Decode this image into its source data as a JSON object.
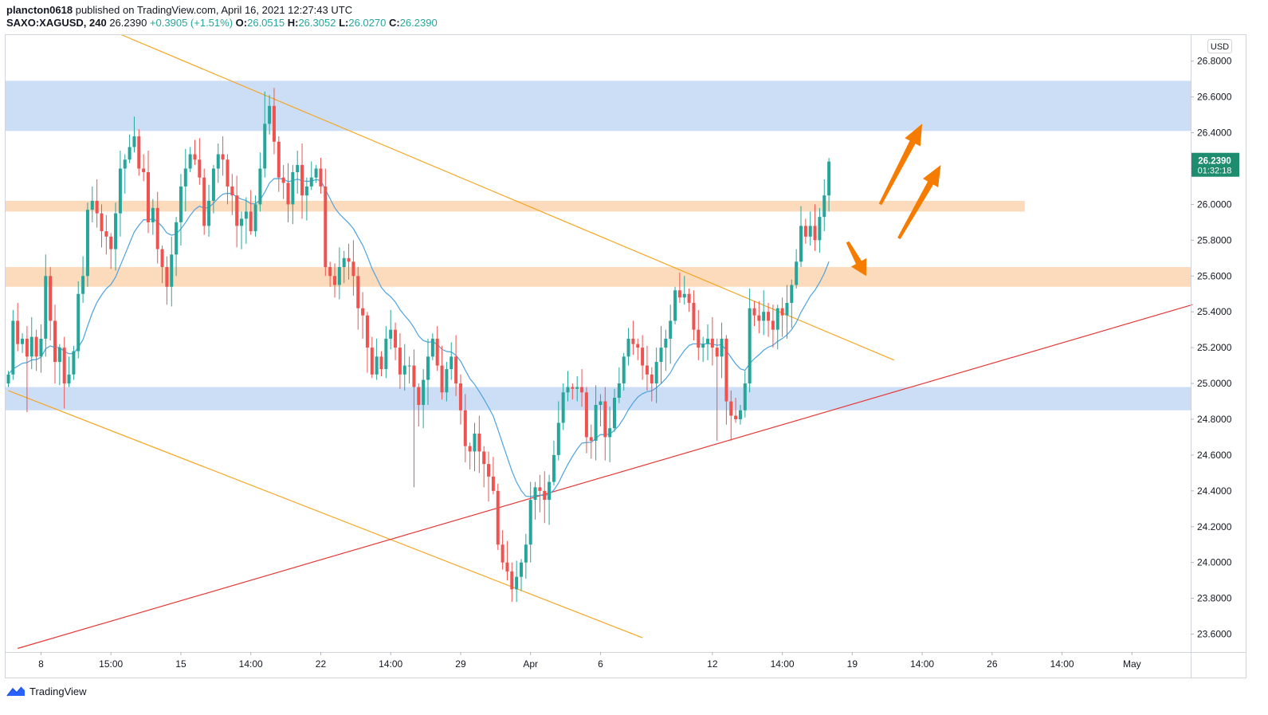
{
  "header": {
    "author": "plancton0618",
    "published_text": "published on TradingView.com, April 16, 2021 12:27:43 UTC"
  },
  "symbol_line": {
    "symbol": "SAXO:XAGUSD, 240",
    "last": "26.2390",
    "change": "+0.3905 (+1.51%)",
    "o_label": "O:",
    "o_value": "26.0515",
    "h_label": "H:",
    "h_value": "26.3052",
    "l_label": "L:",
    "l_value": "26.0270",
    "c_label": "C:",
    "c_value": "26.2390"
  },
  "price_axis": {
    "currency": "USD",
    "current_price": "26.2390",
    "countdown": "01:32:18"
  },
  "footer": {
    "brand": "TradingView"
  },
  "colors": {
    "up": "#26a69a",
    "down": "#ef5350",
    "ema": "#4da3e0",
    "channel": "#f5a623",
    "support_line": "#e53935",
    "blue_zone": "#b6cff2",
    "orange_zone": "#fcd3b0",
    "arrow": "#f57c00",
    "price_tag": "#1e8c6e"
  },
  "chart_data": {
    "type": "candlestick",
    "symbol": "SAXO:XAGUSD",
    "timeframe": "240",
    "yticks": [
      "26.8000",
      "26.6000",
      "26.4000",
      "26.2000",
      "26.0000",
      "25.8000",
      "25.6000",
      "25.4000",
      "25.2000",
      "25.0000",
      "24.8000",
      "24.6000",
      "24.4000",
      "24.2000",
      "24.0000",
      "23.8000",
      "23.6000"
    ],
    "ylim": [
      23.5,
      26.95
    ],
    "xticks": [
      {
        "label": "8",
        "i": 7
      },
      {
        "label": "15:00",
        "i": 22
      },
      {
        "label": "15",
        "i": 37
      },
      {
        "label": "14:00",
        "i": 52
      },
      {
        "label": "22",
        "i": 67
      },
      {
        "label": "14:00",
        "i": 82
      },
      {
        "label": "29",
        "i": 97
      },
      {
        "label": "Apr",
        "i": 112
      },
      {
        "label": "6",
        "i": 127
      },
      {
        "label": "12",
        "i": 151
      },
      {
        "label": "14:00",
        "i": 166
      },
      {
        "label": "19",
        "i": 181
      },
      {
        "label": "14:00",
        "i": 196
      },
      {
        "label": "26",
        "i": 211
      },
      {
        "label": "14:00",
        "i": 226
      },
      {
        "label": "May",
        "i": 241
      }
    ],
    "zones": [
      {
        "color": "blue",
        "y1": 26.41,
        "y2": 26.69,
        "end": "full"
      },
      {
        "color": "orange",
        "y1": 25.96,
        "y2": 26.02,
        "end": 218
      },
      {
        "color": "orange",
        "y1": 25.54,
        "y2": 25.65,
        "end": "full"
      },
      {
        "color": "blue",
        "y1": 24.85,
        "y2": 24.98,
        "end": "full"
      }
    ],
    "trendlines": [
      {
        "name": "",
        "color": "channel",
        "from": [
          24,
          26.95
        ],
        "to": [
          190,
          25.13
        ]
      },
      {
        "name": "",
        "color": "channel",
        "from": [
          0,
          24.96
        ],
        "to": [
          136,
          23.58
        ]
      },
      {
        "name": "",
        "color": "support",
        "from": [
          2,
          23.52
        ],
        "to": [
          254,
          25.44
        ]
      }
    ],
    "arrows": [
      {
        "from": [
          187,
          26.0
        ],
        "to": [
          196,
          26.45
        ]
      },
      {
        "from": [
          191,
          25.81
        ],
        "to": [
          200,
          26.22
        ]
      },
      {
        "from": [
          180,
          25.79
        ],
        "to": [
          184,
          25.6
        ]
      }
    ],
    "closes": [
      25.05,
      25.35,
      25.22,
      25.25,
      25.15,
      25.26,
      25.15,
      25.25,
      25.6,
      25.35,
      25.12,
      25.2,
      25.0,
      25.05,
      25.18,
      25.5,
      25.6,
      25.97,
      26.02,
      25.95,
      25.85,
      25.82,
      25.75,
      25.95,
      26.2,
      26.25,
      26.32,
      26.38,
      26.2,
      26.18,
      25.9,
      25.98,
      25.75,
      25.65,
      25.54,
      25.72,
      25.9,
      26.1,
      26.2,
      26.28,
      26.25,
      26.15,
      25.88,
      26.02,
      26.2,
      26.28,
      26.25,
      26.1,
      26.05,
      25.88,
      25.92,
      25.96,
      25.85,
      26.0,
      26.2,
      26.45,
      26.55,
      26.35,
      26.15,
      26.12,
      26.0,
      26.18,
      26.22,
      26.05,
      26.1,
      26.15,
      26.2,
      26.1,
      25.65,
      25.6,
      25.55,
      25.65,
      25.7,
      25.68,
      25.6,
      25.42,
      25.38,
      25.2,
      25.05,
      25.15,
      25.08,
      25.25,
      25.3,
      25.2,
      25.05,
      25.1,
      25.1,
      24.98,
      24.88,
      25.02,
      25.15,
      25.25,
      25.1,
      24.95,
      25.08,
      25.15,
      25.0,
      24.85,
      24.65,
      24.62,
      24.72,
      24.62,
      24.55,
      24.48,
      24.4,
      24.1,
      24.0,
      23.95,
      23.85,
      23.92,
      24.0,
      24.1,
      24.35,
      24.42,
      24.4,
      24.35,
      24.45,
      24.6,
      24.78,
      24.95,
      24.98,
      24.97,
      24.98,
      24.95,
      24.7,
      24.68,
      24.88,
      24.9,
      24.7,
      24.75,
      24.92,
      25.0,
      25.15,
      25.25,
      25.22,
      25.2,
      25.1,
      25.05,
      25.0,
      25.12,
      25.2,
      25.25,
      25.35,
      25.52,
      25.48,
      25.5,
      25.45,
      25.3,
      25.2,
      25.22,
      25.25,
      25.2,
      25.15,
      25.25,
      24.9,
      24.82,
      24.8,
      24.85,
      25.0,
      25.42,
      25.38,
      25.35,
      25.4,
      25.35,
      25.3,
      25.42,
      25.38,
      25.45,
      25.55,
      25.68,
      25.88,
      25.82,
      25.88,
      25.8,
      25.93,
      26.05,
      26.239
    ],
    "ema_period": 18,
    "last_price": 26.239
  }
}
